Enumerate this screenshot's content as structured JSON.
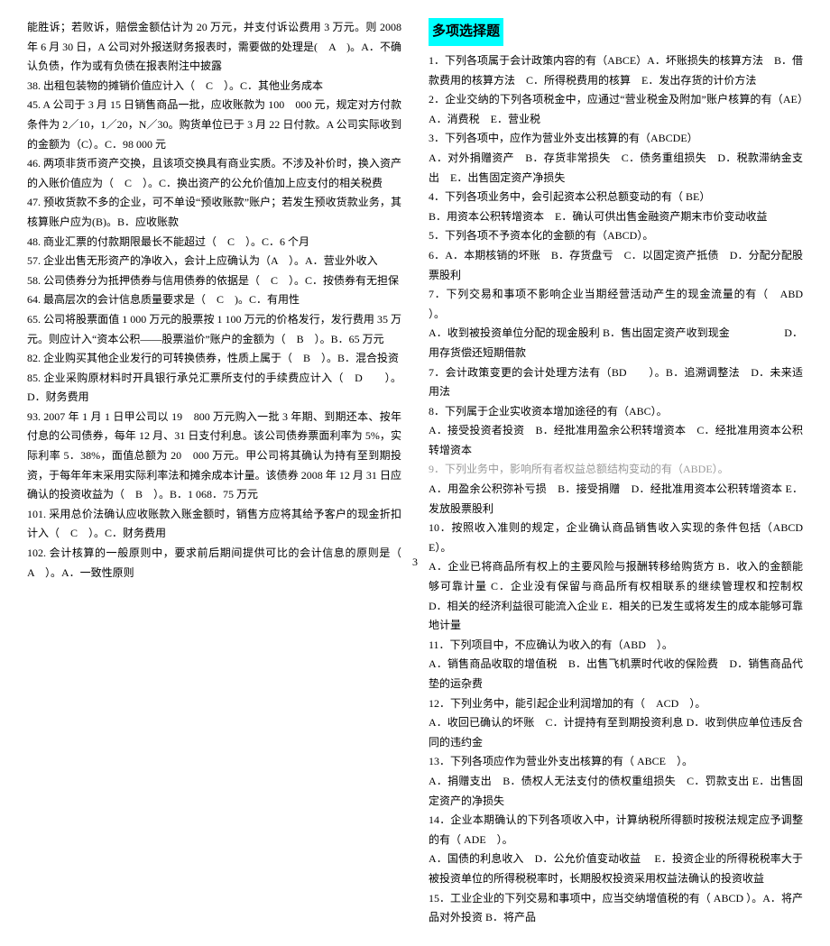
{
  "pageNumber": "3",
  "sectionTitle": "多项选择题",
  "left": [
    "能胜诉；若败诉，赔偿金额估计为 20 万元，并支付诉讼费用 3 万元。则 2008 年 6 月 30 日，A 公司对外报送财务报表时，需要做的处理是(　A　)。A．不确认负债，作为或有负债在报表附注中披露",
    "38. 出租包装物的摊销价值应计入（　C　）。C．其他业务成本",
    "45. A 公司于 3 月 15 日销售商品一批，应收账款为 100　000 元，规定对方付款条件为 2／10，1／20，N／30。购货单位已于 3 月 22 日付款。A 公司实际收到的金额为（C）。C．98 000 元",
    "46. 两项非货币资产交换，且该项交换具有商业实质。不涉及补价时，换入资产的入账价值应为（　C　）。C．换出资产的公允价值加上应支付的相关税费",
    "47. 预收货款不多的企业，可不单设“预收账款”账户；若发生预收货款业务，其核算账户应为(B)。B．应收账款",
    "48. 商业汇票的付款期限最长不能超过（　C　）。C．6 个月",
    "57. 企业出售无形资产的净收入，会计上应确认为（A　）。A．营业外收入",
    "58. 公司债券分为抵押债券与信用债券的依据是（　C　）。C．按债券有无担保",
    "64. 最高层次的会计信息质量要求是（　C　)。C．有用性",
    "65. 公司将股票面值 1 000 万元的股票按 1 100 万元的价格发行，发行费用 35 万元。则应计入“资本公积——股票溢价”账户的金额为（　B　）。B．65 万元",
    "82. 企业购买其他企业发行的可转换债券，性质上属于（　B　）。B．混合投资",
    "85. 企业采购原材料时开具银行承兑汇票所支付的手续费应计入（　D　　）。D．财务费用",
    "93. 2007 年 1 月 1 日甲公司以 19　800 万元购入一批 3 年期、到期还本、按年付息的公司债券，每年 12 月、31 日支付利息。该公司债券票面利率为 5%，实际利率 5．38%，面值总额为 20　000 万元。甲公司将其确认为持有至到期投资，于每年年末采用实际利率法和摊余成本计量。该债券 2008 年 12 月 31 日应确认的投资收益为（　B　）。B．1 068．75 万元",
    "101. 采用总价法确认应收账款入账金额时，销售方应将其给予客户的现金折扣计入（　C　）。C．财务费用",
    "102. 会计核算的一般原则中，要求前后期间提供可比的会计信息的原则是（　A　）。A．一致性原则"
  ],
  "right": [
    "1．下列各项属于会计政策内容的有（ABCE）A．坏账损失的核算方法　B．借款费用的核算方法　C．所得税费用的核算　E．发出存货的计价方法",
    "2．企业交纳的下列各项税金中，应通过“营业税金及附加”账户核算的有（AE）A．消费税　E．营业税",
    "3．下列各项中，应作为营业外支出核算的有（ABCDE）",
    "A．对外捐赠资产　B．存货非常损失　C．债务重组损失　D．税款滞纳金支出　E．出售固定资产净损失",
    "4．下列各项业务中，会引起资本公积总额变动的有（ BE）",
    "B．用资本公积转增资本　E．确认可供出售金融资产期末市价变动收益",
    "5．下列各项不予资本化的金额的有（ABCD）。",
    "6．A．本期核销的坏账　B．存货盘亏　C．以固定资产抵债　D．分配分配股票股利",
    "7．下列交易和事项不影响企业当期经营活动产生的现金流量的有（　ABD　）。",
    "A．收到被投资单位分配的现金股利 B．售出固定资产收到现金　　　　　D．用存货偿还短期借款",
    "7．会计政策变更的会计处理方法有（BD　　）。B．追溯调整法　D．未来适用法",
    "8．下列属于企业实收资本增加途径的有（ABC）。",
    "A．接受投资者投资　B．经批准用盈余公积转增资本　C．经批准用资本公积转增资本",
    "9．下列业务中，影响所有者权益总额结构变动的有（ABDE）。",
    "A．用盈余公积弥补亏损　B．接受捐赠　D．经批准用资本公积转增资本 E．发放股票股利",
    "10．按照收入准则的规定，企业确认商品销售收入实现的条件包括（ABCDE）。",
    "A．企业已将商品所有权上的主要风险与报酬转移给购货方 B．收入的金额能够可靠计量 C．企业没有保留与商品所有权相联系的继续管理权和控制权　D．相关的经济利益很可能流入企业 E．相关的已发生或将发生的成本能够可靠地计量",
    "11．下列项目中，不应确认为收入的有（ABD　）。",
    "A．销售商品收取的增值税　B．出售飞机票时代收的保险费　D．销售商品代垫的运杂费",
    "12．下列业务中，能引起企业利润增加的有（　ACD　）。",
    "A．收回已确认的坏账　C．计提持有至到期投资利息 D．收到供应单位违反合同的违约金",
    "13．下列各项应作为营业外支出核算的有（ ABCE　）。",
    "A．捐赠支出　B．债权人无法支付的债权重组损失　C．罚款支出 E．出售固定资产的净损失",
    "14．企业本期确认的下列各项收入中，计算纳税所得额时按税法规定应予调整的有（ ADE　）。",
    "A．国债的利息收入　D．公允价值变动收益　 E．投资企业的所得税税率大于被投资单位的所得税税率时，长期股权投资采用权益法确认的投资收益",
    "15．工业企业的下列交易和事项中，应当交纳增值税的有（ ABCD ）。A．将产品对外投资 B．将产品"
  ]
}
